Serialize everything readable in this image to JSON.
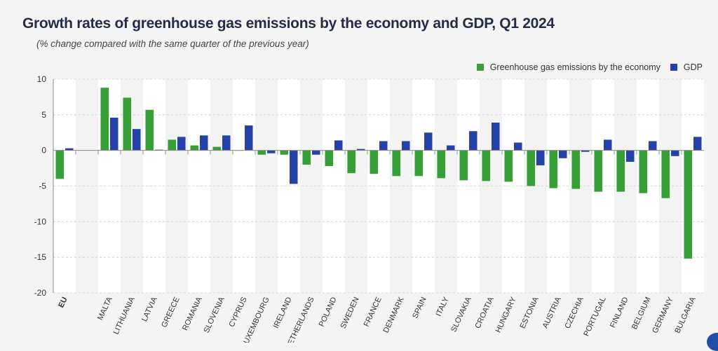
{
  "chart_data": {
    "type": "bar",
    "title": "Growth rates of greenhouse gas emissions by the economy and GDP, Q1 2024",
    "subtitle": "(% change compared with the same quarter of the previous year)",
    "categories": [
      "EU",
      "",
      "MALTA",
      "LITHUANIA",
      "LATVIA",
      "GREECE",
      "ROMANIA",
      "SLOVENIA",
      "CYPRUS",
      "LUXEMBOURG",
      "IRELAND",
      "NETHERLANDS",
      "POLAND",
      "SWEDEN",
      "FRANCE",
      "DENMARK",
      "SPAIN",
      "ITALY",
      "SLOVAKIA",
      "CROATIA",
      "HUNGARY",
      "ESTONIA",
      "AUSTRIA",
      "CZECHIA",
      "PORTUGAL",
      "FINLAND",
      "BELGIUM",
      "GERMANY",
      "BULGARIA"
    ],
    "series": [
      {
        "name": "Greenhouse gas emissions by the economy",
        "color": "#35a035",
        "values": [
          -4.0,
          null,
          8.8,
          7.4,
          5.7,
          1.5,
          0.7,
          0.5,
          0.0,
          -0.6,
          -0.6,
          -2.0,
          -2.2,
          -3.2,
          -3.3,
          -3.6,
          -3.6,
          -3.9,
          -4.2,
          -4.3,
          -4.4,
          -5.0,
          -5.3,
          -5.4,
          -5.8,
          -5.8,
          -6.0,
          -6.7,
          -15.2
        ]
      },
      {
        "name": "GDP",
        "color": "#2542a8",
        "values": [
          0.3,
          null,
          4.6,
          3.0,
          0.1,
          1.9,
          2.1,
          2.1,
          3.5,
          -0.4,
          -4.7,
          -0.6,
          1.4,
          0.2,
          1.3,
          1.3,
          2.5,
          0.7,
          2.7,
          3.9,
          1.1,
          -2.1,
          -1.1,
          -0.2,
          1.5,
          -1.6,
          1.3,
          -0.8,
          1.9
        ]
      }
    ],
    "ylim": [
      -20,
      10
    ],
    "yticks": [
      10,
      5,
      0,
      -5,
      -10,
      -15,
      -20
    ],
    "grid": true,
    "legend_position": "top-right",
    "xlabel": "",
    "ylabel": ""
  }
}
